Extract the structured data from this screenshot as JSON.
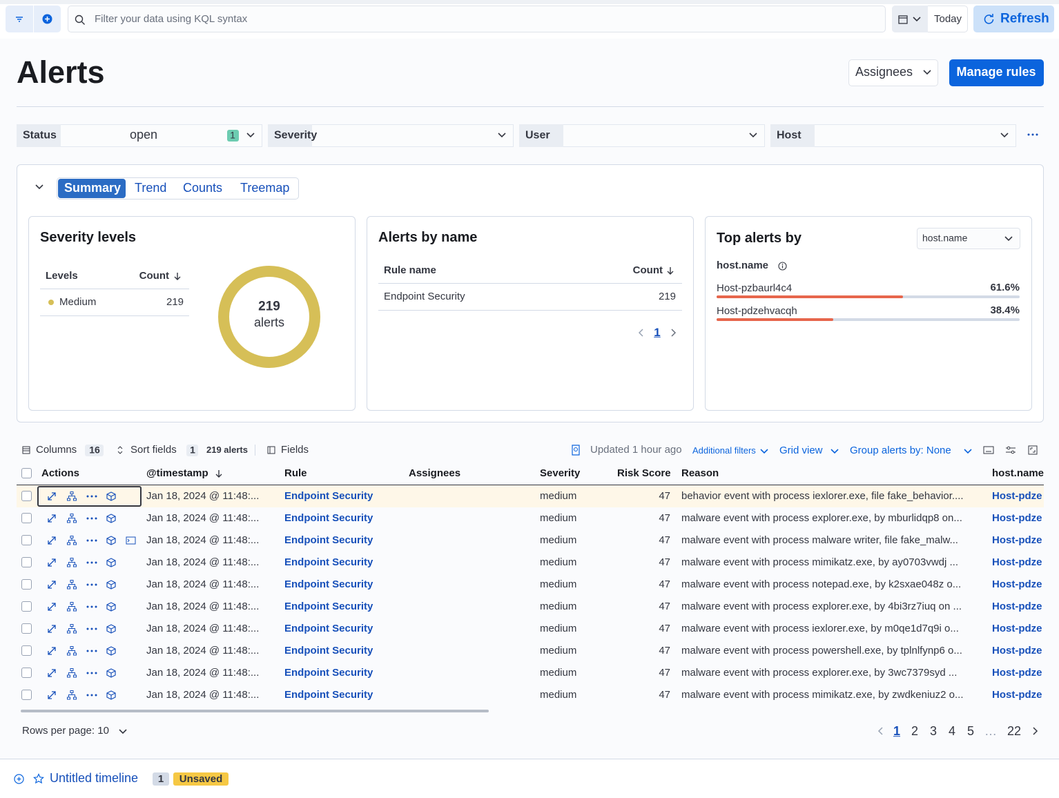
{
  "toolbar": {
    "search_placeholder": "Filter your data using KQL syntax",
    "date": "Today",
    "refresh": "Refresh"
  },
  "header": {
    "title": "Alerts",
    "assignees": "Assignees",
    "manage_rules": "Manage rules"
  },
  "filters": [
    {
      "label": "Status",
      "value": "open",
      "count": 1
    },
    {
      "label": "Severity"
    },
    {
      "label": "User"
    },
    {
      "label": "Host"
    }
  ],
  "tabs": [
    "Summary",
    "Trend",
    "Counts",
    "Treemap"
  ],
  "severity_levels": {
    "title": "Severity levels",
    "columns": [
      "Levels",
      "Count"
    ],
    "rows": [
      {
        "level": "Medium",
        "count": 219
      }
    ],
    "donut": {
      "total": 219,
      "unit": "alerts"
    }
  },
  "alerts_by_name": {
    "title": "Alerts by name",
    "columns": [
      "Rule name",
      "Count"
    ],
    "rows": [
      {
        "name": "Endpoint Security",
        "count": 219
      }
    ],
    "page": 1
  },
  "top_alerts": {
    "title": "Top alerts by",
    "group_by": "host.name",
    "field": "host.name",
    "items": [
      {
        "name": "Host-pzbaurl4c4",
        "value": 61.6,
        "label": "61.6%"
      },
      {
        "name": "Host-pdzehvacqh",
        "value": 38.4,
        "label": "38.4%"
      }
    ]
  },
  "table_toolbar": {
    "columns": "Columns",
    "columns_count": 16,
    "sort_fields": "Sort fields",
    "sort_count": 1,
    "alerts": "219 alerts",
    "fields": "Fields",
    "updated": "Updated 1 hour ago",
    "additional_filters": "Additional filters",
    "grid_view": "Grid view",
    "group_by": "Group alerts by: None"
  },
  "table": {
    "columns": [
      "Actions",
      "@timestamp",
      "Rule",
      "Assignees",
      "Severity",
      "Risk Score",
      "Reason",
      "host.name"
    ],
    "rows": [
      [
        "Jan 18, 2024 @ 11:48:...",
        "Endpoint Security",
        "medium",
        47,
        "behavior event with process iexlorer.exe, file fake_behavior....",
        "Host-pdze"
      ],
      [
        "Jan 18, 2024 @ 11:48:...",
        "Endpoint Security",
        "medium",
        47,
        "malware event with process explorer.exe, by mburlidqp8 on...",
        "Host-pdze"
      ],
      [
        "Jan 18, 2024 @ 11:48:...",
        "Endpoint Security",
        "medium",
        47,
        "malware event with process malware writer, file fake_malw...",
        "Host-pdze"
      ],
      [
        "Jan 18, 2024 @ 11:48:...",
        "Endpoint Security",
        "medium",
        47,
        "malware event with process mimikatz.exe, by ay0703vwdj ...",
        "Host-pdze"
      ],
      [
        "Jan 18, 2024 @ 11:48:...",
        "Endpoint Security",
        "medium",
        47,
        "malware event with process notepad.exe, by k2sxae048z o...",
        "Host-pdze"
      ],
      [
        "Jan 18, 2024 @ 11:48:...",
        "Endpoint Security",
        "medium",
        47,
        "malware event with process explorer.exe, by 4bi3rz7iuq on ...",
        "Host-pdze"
      ],
      [
        "Jan 18, 2024 @ 11:48:...",
        "Endpoint Security",
        "medium",
        47,
        "malware event with process iexlorer.exe, by m0qe1d7q9i o...",
        "Host-pdze"
      ],
      [
        "Jan 18, 2024 @ 11:48:...",
        "Endpoint Security",
        "medium",
        47,
        "malware event with process powershell.exe, by tplnlfynp6 o...",
        "Host-pdze"
      ],
      [
        "Jan 18, 2024 @ 11:48:...",
        "Endpoint Security",
        "medium",
        47,
        "malware event with process explorer.exe, by 3wc7379syd ...",
        "Host-pdze"
      ],
      [
        "Jan 18, 2024 @ 11:48:...",
        "Endpoint Security",
        "medium",
        47,
        "malware event with process mimikatz.exe, by zwdkeniuz2 o...",
        "Host-pdze"
      ]
    ]
  },
  "pagination": {
    "rows_per_page": "Rows per page: 10",
    "pages": [
      1,
      2,
      3,
      4,
      5,
      "…",
      22
    ]
  },
  "timeline": {
    "title": "Untitled timeline",
    "count": 1,
    "status": "Unsaved"
  }
}
